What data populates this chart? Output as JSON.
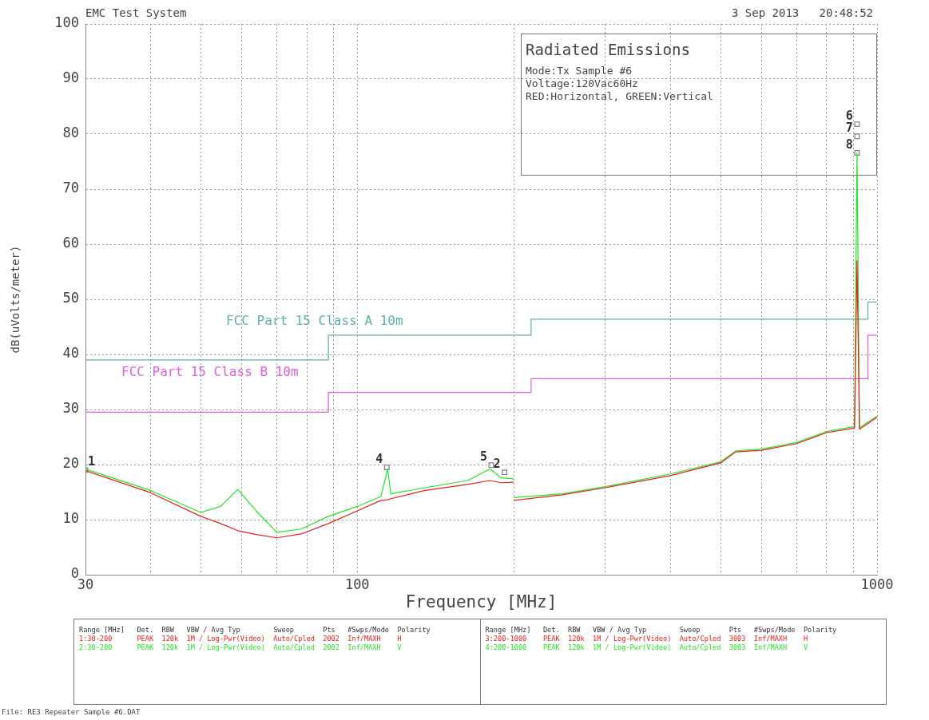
{
  "chart_data": {
    "type": "line",
    "title": "Radiated Emissions",
    "xlabel": "Frequency [MHz]",
    "ylabel": "dB(uVolts/meter)",
    "log": "x",
    "grid": true,
    "legend": false,
    "xlim": [
      30,
      1000
    ],
    "xticks": [
      30,
      {
        "value": 40,
        "label": null
      },
      {
        "value": 50,
        "label": null
      },
      {
        "value": 60,
        "label": null
      },
      {
        "value": 70,
        "label": null
      },
      {
        "value": 80,
        "label": null
      },
      {
        "value": 90,
        "label": null
      },
      100,
      {
        "value": 200,
        "label": null
      },
      {
        "value": 300,
        "label": null
      },
      {
        "value": 400,
        "label": null
      },
      {
        "value": 500,
        "label": null
      },
      {
        "value": 600,
        "label": null
      },
      {
        "value": 700,
        "label": null
      },
      {
        "value": 800,
        "label": null
      },
      {
        "value": 900,
        "label": null
      },
      1000
    ],
    "ylim": [
      0,
      100
    ],
    "yticks": [
      0,
      10,
      20,
      30,
      40,
      50,
      60,
      70,
      80,
      90,
      100
    ],
    "series": [
      {
        "color": "#e8201c",
        "x": [
          30,
          40,
          50,
          54.6,
          58.9,
          63.9,
          70,
          78,
          88,
          100,
          111,
          114.4,
          116,
          135,
          163,
          180,
          189,
          200,
          null,
          200,
          248,
          300,
          400,
          500,
          535,
          600,
          700,
          800,
          905,
          915,
          925,
          1000
        ],
        "values": [
          18.9,
          14.9,
          10.6,
          9.3,
          8,
          7.3,
          6.7,
          7.4,
          9.3,
          11.6,
          13.5,
          13.6,
          13.8,
          15.3,
          16.4,
          17.1,
          16.7,
          16.8,
          null,
          13.5,
          14.5,
          15.8,
          18,
          20.3,
          22.3,
          22.6,
          23.8,
          25.8,
          26.6,
          57,
          26.4,
          28.6
        ]
      },
      {
        "color": "#22e622",
        "x": [
          30,
          40,
          50,
          54.6,
          58.9,
          63.9,
          70,
          78,
          88,
          100,
          111,
          114.4,
          116,
          135,
          163,
          180,
          189,
          200,
          null,
          200,
          248,
          300,
          400,
          500,
          535,
          600,
          700,
          800,
          905,
          915,
          925,
          1000
        ],
        "values": [
          19.2,
          15.3,
          11.3,
          12.4,
          15.5,
          11.6,
          7.7,
          8.3,
          10.6,
          12.4,
          14.2,
          19.2,
          14.7,
          15.8,
          17.1,
          19.2,
          17.6,
          17.4,
          null,
          14,
          14.7,
          16,
          18.3,
          20.5,
          22.5,
          22.8,
          24,
          26,
          26.9,
          76.6,
          26.7,
          28.8
        ]
      },
      {
        "type": "step",
        "color": "#5fb0a8",
        "x": [
          30,
          88,
          216,
          960,
          1000
        ],
        "values": [
          39,
          43.5,
          46.4,
          49.5,
          49.5
        ]
      },
      {
        "type": "step",
        "color": "#e060e0",
        "x": [
          30,
          88,
          216,
          960,
          1000
        ],
        "values": [
          29.5,
          33.1,
          35.6,
          43.5,
          43.5
        ]
      },
      {
        "type": "scatter",
        "color": "#808080",
        "marker": "square",
        "x": [
          30,
          114,
          181,
          192,
          915,
          915,
          915
        ],
        "values": [
          19,
          19.5,
          19.9,
          18.6,
          81.8,
          79.6,
          76.6
        ]
      }
    ],
    "annotations": [
      "EMC Test System",
      "3 Sep 2013   20:48:52",
      "Mode:Tx Sample #6",
      "Voltage:120Vac60Hz",
      "RED:Horizontal, GREEN:Vertical",
      "FCC Part 15 Class A 10m",
      "FCC Part 15 Class B 10m",
      "Range [MHz]   Det.  RBW   VBW / Avg Typ        Sweep       Pts   #Swps/Mode  Polarity",
      "1:30-200      PEAK  120k  1M / Log-Pwr(Video)  Auto/Cpled  2002  Inf/MAXH    H",
      "2:30-200      PEAK  120k  1M / Log-Pwr(Video)  Auto/Cpled  2002  Inf/MAXH    V",
      "Range [MHz]   Det.  RBW   VBW / Avg Typ        Sweep       Pts   #Swps/Mode  Polarity",
      "3:200-1000    PEAK  120k  1M / Log-Pwr(Video)  Auto/Cpled  3003  Inf/MAXH    H",
      "4:200-1000    PEAK  120k  1M / Log-Pwr(Video)  Auto/Cpled  3003  Inf/MAXH    V",
      "File: RE3 Repeater Sample #6.DAT",
      {
        "text": "1",
        "x": 30,
        "y": 19
      },
      {
        "text": "4",
        "x": 114,
        "y": 19.5
      },
      {
        "text": "5",
        "x": 181,
        "y": 19.9
      },
      {
        "text": "2",
        "x": 192,
        "y": 18.6
      },
      {
        "text": "6",
        "x": 915,
        "y": 81.8
      },
      {
        "text": "7",
        "x": 915,
        "y": 79.6
      },
      {
        "text": "8",
        "x": 915,
        "y": 76.6
      }
    ]
  }
}
